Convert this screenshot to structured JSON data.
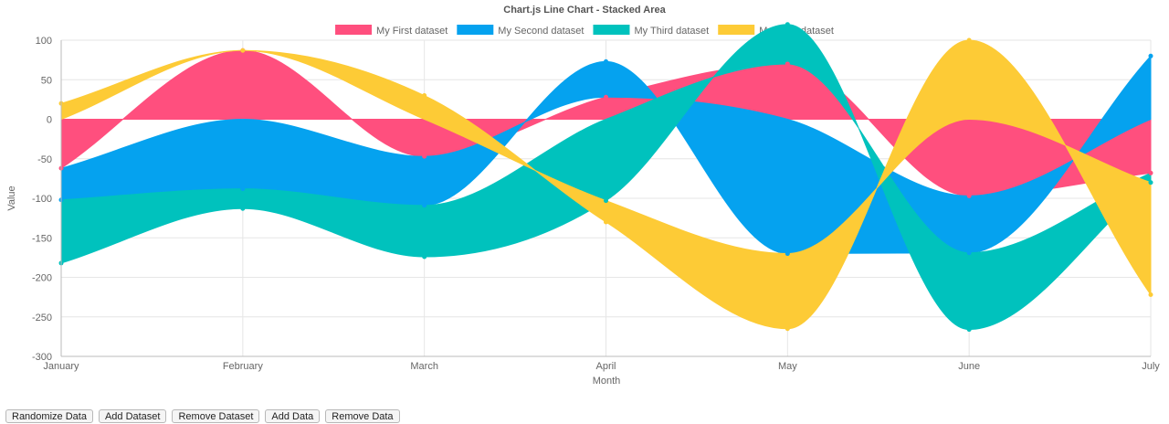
{
  "chart_data": {
    "type": "area",
    "title": "Chart.js Line Chart - Stacked Area",
    "xlabel": "Month",
    "ylabel": "Value",
    "ylim": [
      -300,
      100
    ],
    "ytick_step": 50,
    "grid": true,
    "legend_position": "top",
    "categories": [
      "January",
      "February",
      "March",
      "April",
      "May",
      "June",
      "July"
    ],
    "series": [
      {
        "name": "My First dataset",
        "color": "#ff4f7e",
        "values": [
          -62,
          87,
          -47,
          28,
          70,
          -97,
          -68
        ]
      },
      {
        "name": "My Second dataset",
        "color": "#05a2ef",
        "values": [
          -40,
          -88,
          -62,
          45,
          -170,
          -72,
          80
        ]
      },
      {
        "name": "My Third dataset",
        "color": "#00c2bd",
        "values": [
          -80,
          -25,
          -65,
          -103,
          50,
          -97,
          -12
        ]
      },
      {
        "name": "My Third dataset",
        "color": "#fdcb36",
        "values": [
          20,
          0,
          30,
          -27,
          -95,
          100,
          -142
        ]
      }
    ]
  },
  "controls": {
    "randomize": "Randomize Data",
    "add_dataset": "Add Dataset",
    "remove_dataset": "Remove Dataset",
    "add_data": "Add Data",
    "remove_data": "Remove Data"
  }
}
